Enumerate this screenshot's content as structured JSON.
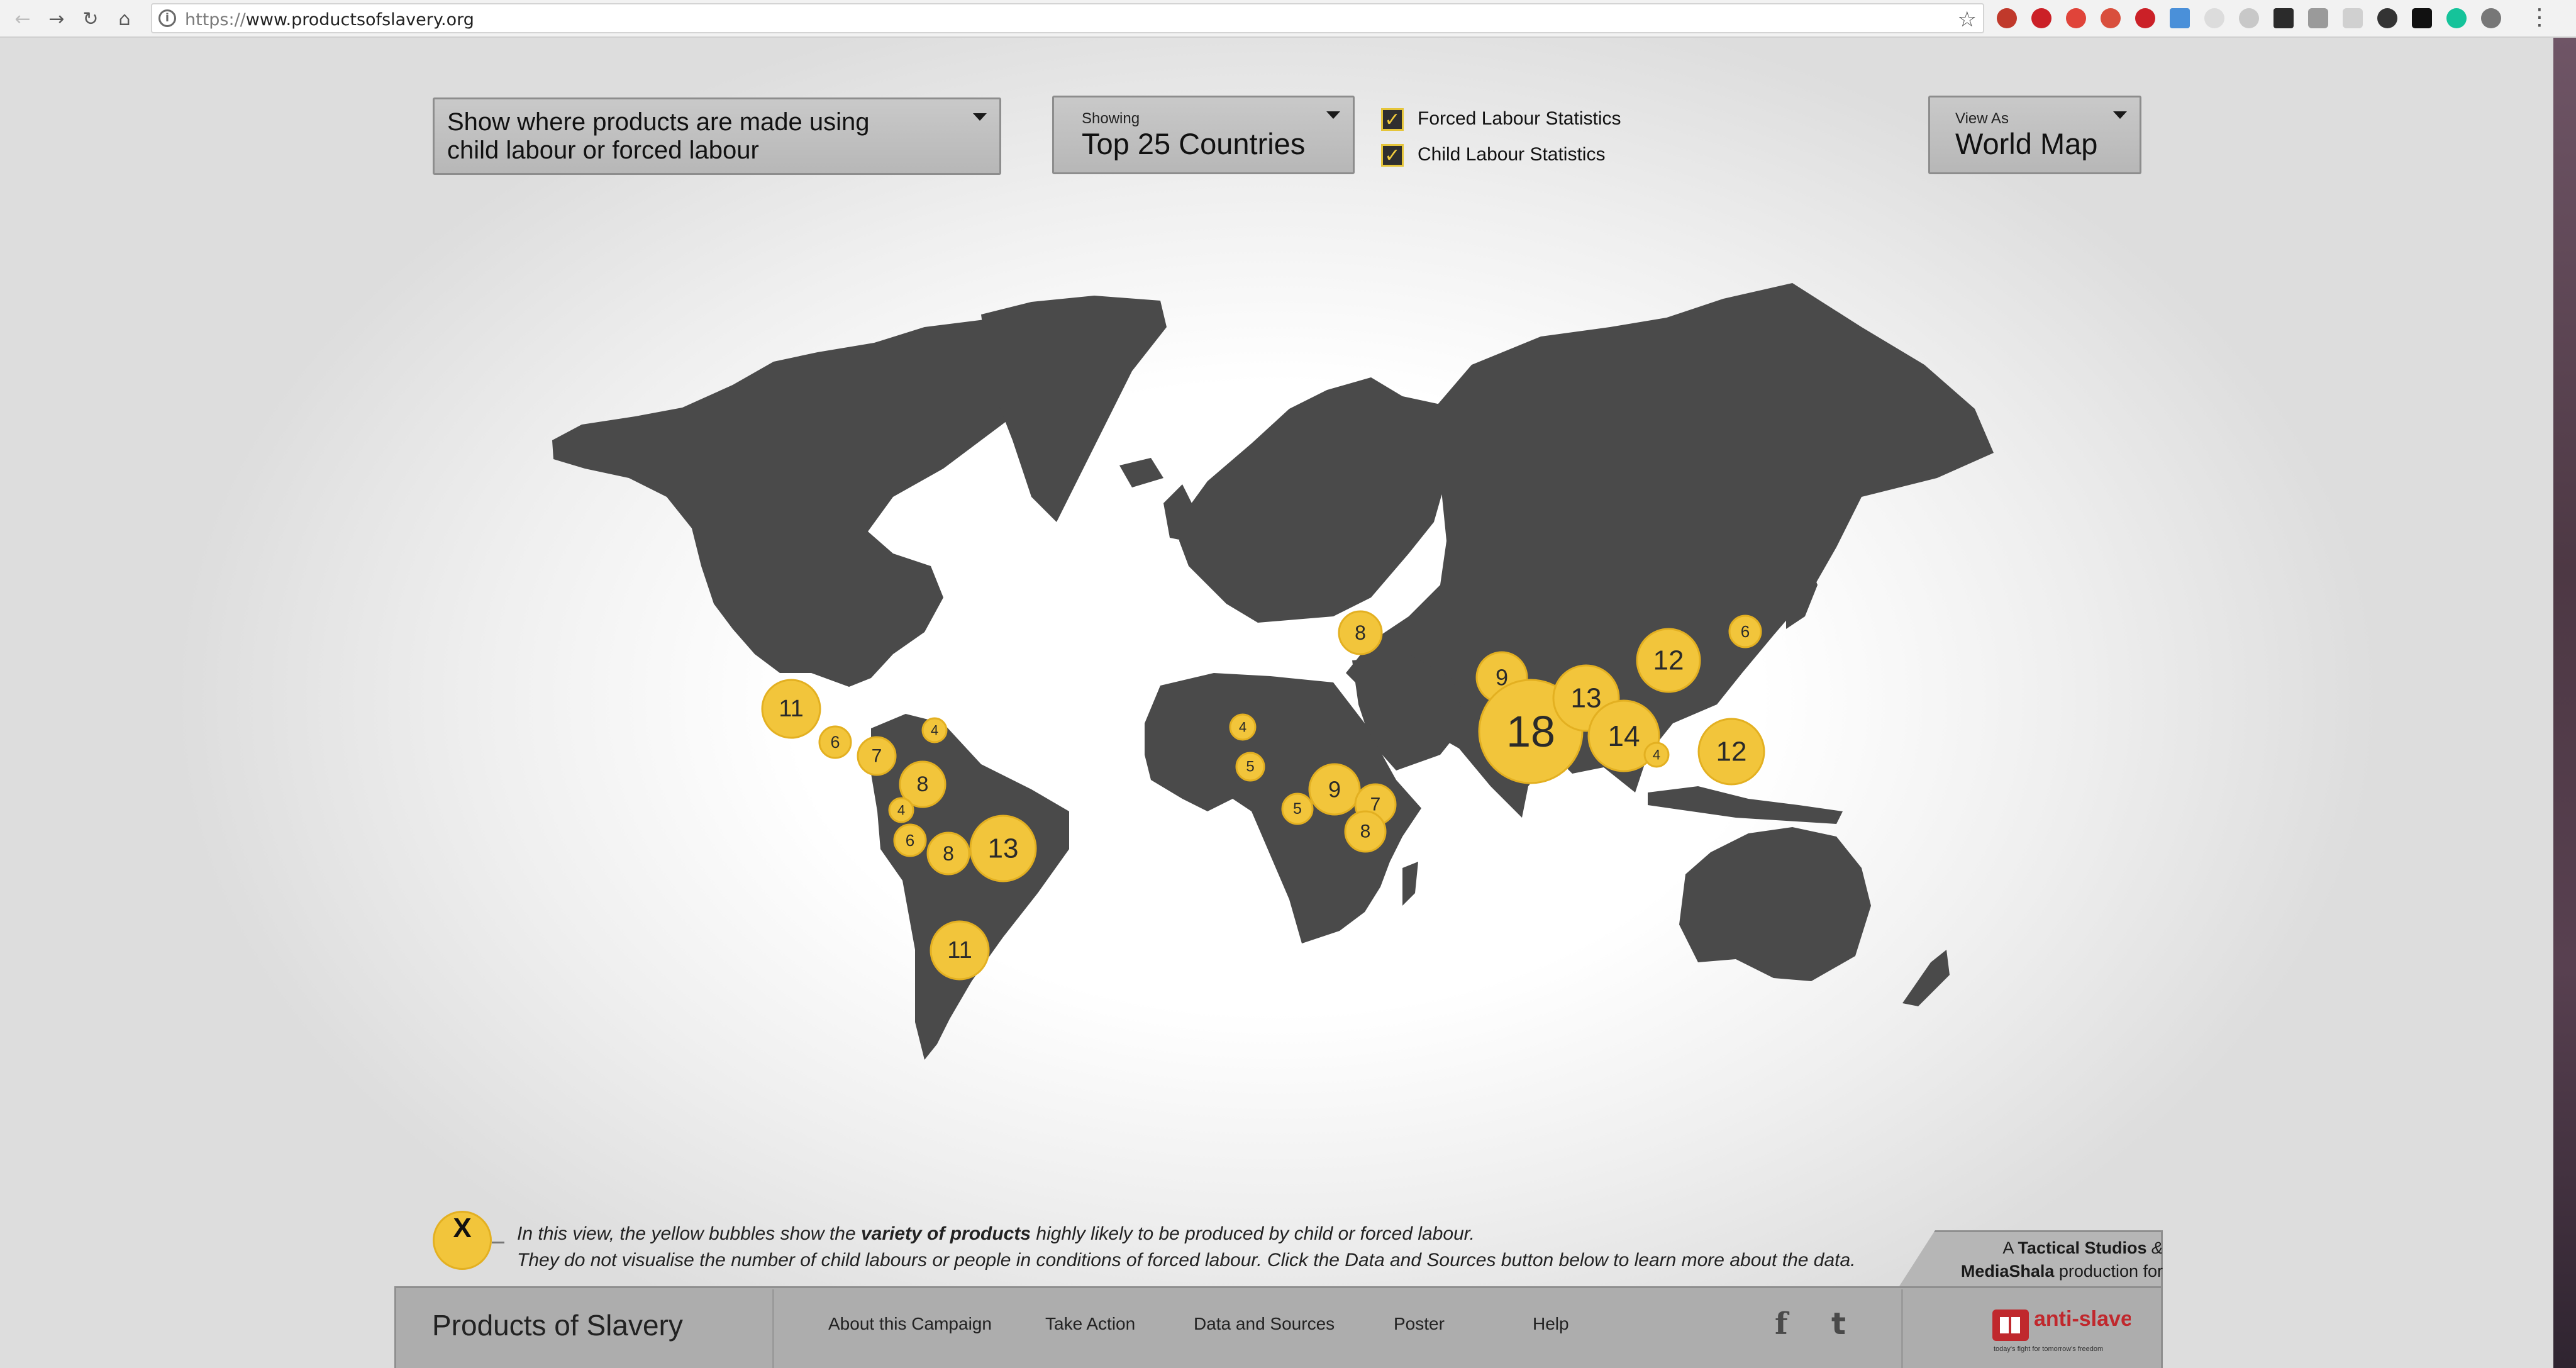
{
  "browser": {
    "url_scheme": "https://",
    "url_host": "www.productsofslavery.org",
    "extension_icons": [
      "abp-icon",
      "pinterest-icon",
      "shield-icon",
      "flag-icon",
      "pinterest-icon",
      "download-icon",
      "chat-icon",
      "dropbox-icon",
      "bird-icon",
      "camera-icon",
      "camera-icon",
      "eye-icon",
      "user-icon",
      "grammarly-icon",
      "profile-icon"
    ]
  },
  "controls": {
    "filter_label_line1": "Show where products are made using",
    "filter_label_line2": "child labour or forced labour",
    "showing_label": "Showing",
    "showing_value": "Top 25 Countries",
    "forced_labour_label": "Forced Labour Statistics",
    "forced_labour_checked": true,
    "child_labour_label": "Child Labour Statistics",
    "child_labour_checked": true,
    "view_as_label": "View As",
    "view_as_value": "World Map"
  },
  "bubbles": [
    {
      "region": "Mexico",
      "value": "11"
    },
    {
      "region": "Central America",
      "value": "6"
    },
    {
      "region": "Central America",
      "value": "7"
    },
    {
      "region": "Caribbean",
      "value": "4"
    },
    {
      "region": "Colombia",
      "value": "8"
    },
    {
      "region": "Ecuador",
      "value": "4"
    },
    {
      "region": "Peru",
      "value": "6"
    },
    {
      "region": "Bolivia",
      "value": "8"
    },
    {
      "region": "Brazil",
      "value": "13"
    },
    {
      "region": "Argentina",
      "value": "11"
    },
    {
      "region": "Turkey",
      "value": "8"
    },
    {
      "region": "West Africa",
      "value": "4"
    },
    {
      "region": "West Africa",
      "value": "5"
    },
    {
      "region": "Central Africa",
      "value": "5"
    },
    {
      "region": "East Africa",
      "value": "9"
    },
    {
      "region": "East Africa",
      "value": "7"
    },
    {
      "region": "East Africa",
      "value": "8"
    },
    {
      "region": "Pakistan",
      "value": "9"
    },
    {
      "region": "India",
      "value": "18"
    },
    {
      "region": "Bangladesh",
      "value": "13"
    },
    {
      "region": "Myanmar",
      "value": "14"
    },
    {
      "region": "Southeast Asia",
      "value": "4"
    },
    {
      "region": "China",
      "value": "12"
    },
    {
      "region": "North Korea",
      "value": "6"
    },
    {
      "region": "Philippines",
      "value": "12"
    }
  ],
  "legend": {
    "symbol": "X",
    "line1_before": "In this view, the yellow bubbles show the ",
    "line1_bold": "variety of products",
    "line1_after": " highly likely to be produced by child or forced labour.",
    "line2": "They do not visualise the number of child labours or people in conditions of forced labour. Click the Data and Sources button below to learn more about the data."
  },
  "credit": {
    "a": "A ",
    "studio1": "Tactical Studios",
    "amp": " &",
    "studio2": "MediaShala",
    "production_for": " production for"
  },
  "footer": {
    "brand": "Products of Slavery",
    "links": [
      "About this Campaign",
      "Take Action",
      "Data and Sources",
      "Poster",
      "Help"
    ],
    "social": [
      "facebook-icon",
      "twitter-icon"
    ],
    "logo_text": "anti-slavery",
    "logo_tagline": "today's fight for tomorrow's freedom"
  },
  "colors": {
    "bubble": "#f2c53b",
    "land": "#4a4a4a",
    "panel": "#b9b9b9"
  }
}
